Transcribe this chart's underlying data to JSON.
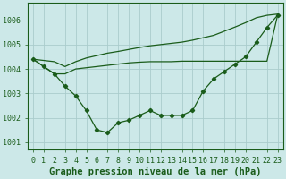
{
  "background_color": "#cce8e8",
  "grid_color": "#aacccc",
  "line_color": "#1a5c1a",
  "marker_color": "#1a5c1a",
  "title": "Graphe pression niveau de la mer (hPa)",
  "xlim": [
    -0.5,
    23.5
  ],
  "ylim": [
    1000.7,
    1006.7
  ],
  "yticks": [
    1001,
    1002,
    1003,
    1004,
    1005,
    1006
  ],
  "ytick_labels": [
    "1001",
    "1002",
    "1003",
    "1004",
    "1005",
    "1006"
  ],
  "xticks": [
    0,
    1,
    2,
    3,
    4,
    5,
    6,
    7,
    8,
    9,
    10,
    11,
    12,
    13,
    14,
    15,
    16,
    17,
    18,
    19,
    20,
    21,
    22,
    23
  ],
  "series1": [
    1004.4,
    1004.1,
    1003.8,
    1003.3,
    1002.9,
    1002.3,
    1001.5,
    1001.4,
    1001.8,
    1001.9,
    1002.1,
    1002.3,
    1002.1,
    1002.1,
    1002.1,
    1002.3,
    1003.1,
    1003.6,
    1003.9,
    1004.2,
    1004.5,
    1005.1,
    1005.7,
    1006.2
  ],
  "series2": [
    1004.4,
    1004.1,
    1003.8,
    1003.8,
    1004.0,
    1004.05,
    1004.1,
    1004.15,
    1004.2,
    1004.25,
    1004.28,
    1004.3,
    1004.3,
    1004.3,
    1004.32,
    1004.32,
    1004.32,
    1004.32,
    1004.32,
    1004.32,
    1004.32,
    1004.32,
    1004.32,
    1006.2
  ],
  "series3": [
    1004.4,
    1004.35,
    1004.3,
    1004.1,
    1004.3,
    1004.45,
    1004.55,
    1004.65,
    1004.72,
    1004.8,
    1004.88,
    1004.95,
    1005.0,
    1005.05,
    1005.1,
    1005.18,
    1005.28,
    1005.38,
    1005.55,
    1005.72,
    1005.9,
    1006.1,
    1006.2,
    1006.25
  ],
  "title_fontsize": 7.5,
  "tick_fontsize": 6,
  "font_family": "monospace"
}
